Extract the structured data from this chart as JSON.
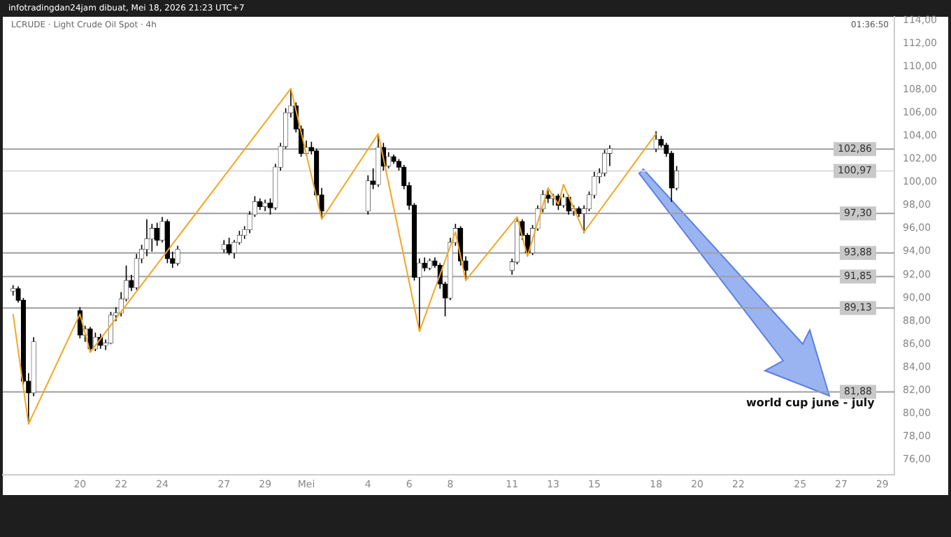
{
  "chart_data": {
    "type": "candlestick",
    "title": "LCRUDE · Light Crude Oil Spot · 4h",
    "x": [
      "2026-04-16T18:00",
      "2026-04-17T00:00",
      "2026-04-17T06:00",
      "2026-04-17T12:00",
      "2026-04-17T18:00",
      "2026-04-20T00:00",
      "2026-04-20T06:00",
      "2026-04-20T12:00",
      "2026-04-20T18:00",
      "2026-04-21T00:00",
      "2026-04-21T06:00",
      "2026-04-21T12:00",
      "2026-04-21T18:00",
      "2026-04-22T00:00",
      "2026-04-22T06:00",
      "2026-04-22T12:00",
      "2026-04-22T18:00",
      "2026-04-23T00:00",
      "2026-04-23T06:00",
      "2026-04-23T12:00",
      "2026-04-23T18:00",
      "2026-04-24T00:00",
      "2026-04-24T06:00",
      "2026-04-24T12:00",
      "2026-04-24T18:00",
      "2026-04-27T00:00",
      "2026-04-27T06:00",
      "2026-04-27T12:00",
      "2026-04-27T18:00",
      "2026-04-28T00:00",
      "2026-04-28T06:00",
      "2026-04-28T12:00",
      "2026-04-28T18:00",
      "2026-04-29T00:00",
      "2026-04-29T06:00",
      "2026-04-29T12:00",
      "2026-04-29T18:00",
      "2026-04-30T00:00",
      "2026-04-30T06:00",
      "2026-04-30T12:00",
      "2026-04-30T18:00",
      "2026-05-01T00:00",
      "2026-05-01T06:00",
      "2026-05-01T12:00",
      "2026-05-01T18:00",
      "2026-05-04T00:00",
      "2026-05-04T06:00",
      "2026-05-04T12:00",
      "2026-05-04T18:00",
      "2026-05-05T00:00",
      "2026-05-05T06:00",
      "2026-05-05T12:00",
      "2026-05-05T18:00",
      "2026-05-06T00:00",
      "2026-05-06T06:00",
      "2026-05-06T12:00",
      "2026-05-06T18:00",
      "2026-05-07T00:00",
      "2026-05-07T06:00",
      "2026-05-07T12:00",
      "2026-05-07T18:00",
      "2026-05-08T00:00",
      "2026-05-08T06:00",
      "2026-05-08T12:00",
      "2026-05-08T18:00",
      "2026-05-11T00:00",
      "2026-05-11T06:00",
      "2026-05-11T12:00",
      "2026-05-11T18:00",
      "2026-05-12T00:00",
      "2026-05-12T06:00",
      "2026-05-12T12:00",
      "2026-05-12T18:00",
      "2026-05-13T00:00",
      "2026-05-13T06:00",
      "2026-05-13T12:00",
      "2026-05-13T18:00",
      "2026-05-14T00:00",
      "2026-05-14T06:00",
      "2026-05-14T12:00",
      "2026-05-14T18:00",
      "2026-05-15T00:00",
      "2026-05-15T06:00",
      "2026-05-15T12:00",
      "2026-05-15T18:00",
      "2026-05-18T00:00",
      "2026-05-18T06:00",
      "2026-05-18T12:00",
      "2026-05-18T18:00",
      "2026-05-19T00:00"
    ],
    "ohlc": [
      [
        90.6,
        91.1,
        90.2,
        90.8
      ],
      [
        90.8,
        91.0,
        89.6,
        89.8
      ],
      [
        89.8,
        90.0,
        82.5,
        82.8
      ],
      [
        82.8,
        83.5,
        79.1,
        81.8
      ],
      [
        81.8,
        86.6,
        81.5,
        86.2
      ],
      [
        88.9,
        89.2,
        86.5,
        86.8
      ],
      [
        86.8,
        87.6,
        86.2,
        87.3
      ],
      [
        87.3,
        87.5,
        85.3,
        85.6
      ],
      [
        85.6,
        87.0,
        85.4,
        86.6
      ],
      [
        86.6,
        86.9,
        85.6,
        85.9
      ],
      [
        85.9,
        86.4,
        85.5,
        86.1
      ],
      [
        86.1,
        88.8,
        86.0,
        88.5
      ],
      [
        88.5,
        89.2,
        88.0,
        88.7
      ],
      [
        88.7,
        90.5,
        88.4,
        89.9
      ],
      [
        89.9,
        92.8,
        89.7,
        91.5
      ],
      [
        91.5,
        92.0,
        90.6,
        90.9
      ],
      [
        90.9,
        93.8,
        90.7,
        93.4
      ],
      [
        93.4,
        94.6,
        93.0,
        94.2
      ],
      [
        94.2,
        96.8,
        93.6,
        95.1
      ],
      [
        95.1,
        96.4,
        94.0,
        96.0
      ],
      [
        96.0,
        96.5,
        94.5,
        95.0
      ],
      [
        95.0,
        97.0,
        94.8,
        96.6
      ],
      [
        96.6,
        96.8,
        93.0,
        93.4
      ],
      [
        93.4,
        94.0,
        92.6,
        93.0
      ],
      [
        93.0,
        94.5,
        92.8,
        94.2
      ],
      [
        94.2,
        95.0,
        93.9,
        94.6
      ],
      [
        94.6,
        95.2,
        93.7,
        93.9
      ],
      [
        93.9,
        95.0,
        93.4,
        94.8
      ],
      [
        94.8,
        95.8,
        94.6,
        95.4
      ],
      [
        95.4,
        96.2,
        95.1,
        95.9
      ],
      [
        95.9,
        97.5,
        95.6,
        97.2
      ],
      [
        97.2,
        98.8,
        97.0,
        98.3
      ],
      [
        98.3,
        98.6,
        97.6,
        97.9
      ],
      [
        97.9,
        98.5,
        97.5,
        98.2
      ],
      [
        98.2,
        98.6,
        97.2,
        97.8
      ],
      [
        97.8,
        101.6,
        97.6,
        101.3
      ],
      [
        101.3,
        103.4,
        101.0,
        103.1
      ],
      [
        103.1,
        106.4,
        102.9,
        106.0
      ],
      [
        106.0,
        108.1,
        105.6,
        106.6
      ],
      [
        106.6,
        106.9,
        104.3,
        104.6
      ],
      [
        104.6,
        104.9,
        102.2,
        102.5
      ],
      [
        102.5,
        103.6,
        102.3,
        103.0
      ],
      [
        103.0,
        103.5,
        102.4,
        102.7
      ],
      [
        102.7,
        102.9,
        98.6,
        98.9
      ],
      [
        98.9,
        99.5,
        96.8,
        97.5
      ],
      [
        97.5,
        100.6,
        97.2,
        100.1
      ],
      [
        100.1,
        101.2,
        99.4,
        99.8
      ],
      [
        99.8,
        104.2,
        99.6,
        103.0
      ],
      [
        103.0,
        103.4,
        101.0,
        101.4
      ],
      [
        101.4,
        102.6,
        101.2,
        102.2
      ],
      [
        102.2,
        102.4,
        101.6,
        101.8
      ],
      [
        101.8,
        102.0,
        101.0,
        101.3
      ],
      [
        101.3,
        101.5,
        99.4,
        99.7
      ],
      [
        99.7,
        100.0,
        97.6,
        98.0
      ],
      [
        98.0,
        98.2,
        91.5,
        91.8
      ],
      [
        91.8,
        93.4,
        87.1,
        93.0
      ],
      [
        93.0,
        93.5,
        92.3,
        92.6
      ],
      [
        92.6,
        93.4,
        92.4,
        93.2
      ],
      [
        93.2,
        93.5,
        92.6,
        92.8
      ],
      [
        92.8,
        93.0,
        90.8,
        91.2
      ],
      [
        91.2,
        91.4,
        88.4,
        90.0
      ],
      [
        90.0,
        95.2,
        89.8,
        94.8
      ],
      [
        94.8,
        96.4,
        94.5,
        96.0
      ],
      [
        96.0,
        96.2,
        92.8,
        93.2
      ],
      [
        93.2,
        93.6,
        91.6,
        92.4
      ],
      [
        92.4,
        93.4,
        92.0,
        93.1
      ],
      [
        93.1,
        96.9,
        92.9,
        96.6
      ],
      [
        96.6,
        96.8,
        95.0,
        95.4
      ],
      [
        95.4,
        95.6,
        93.6,
        93.9
      ],
      [
        93.9,
        96.3,
        93.7,
        96.0
      ],
      [
        96.0,
        98.0,
        95.8,
        97.7
      ],
      [
        97.7,
        99.3,
        97.4,
        98.9
      ],
      [
        98.9,
        99.3,
        98.2,
        98.6
      ],
      [
        98.6,
        99.0,
        98.0,
        98.8
      ],
      [
        98.8,
        99.0,
        97.6,
        98.0
      ],
      [
        98.0,
        99.0,
        97.8,
        98.7
      ],
      [
        98.7,
        98.9,
        97.2,
        97.5
      ],
      [
        97.5,
        98.0,
        97.1,
        97.7
      ],
      [
        97.7,
        97.9,
        97.0,
        97.3
      ],
      [
        97.3,
        98.0,
        95.6,
        97.7
      ],
      [
        97.7,
        99.2,
        97.5,
        98.9
      ],
      [
        98.9,
        100.9,
        98.6,
        100.5
      ],
      [
        100.5,
        101.2,
        99.9,
        100.8
      ],
      [
        100.8,
        102.8,
        100.5,
        102.5
      ],
      [
        102.5,
        103.2,
        101.4,
        102.9
      ],
      [
        102.9,
        104.4,
        102.6,
        103.7
      ],
      [
        103.7,
        104.0,
        103.0,
        103.2
      ],
      [
        103.2,
        103.4,
        102.2,
        102.5
      ],
      [
        102.5,
        102.7,
        98.3,
        99.5
      ],
      [
        99.5,
        101.4,
        99.3,
        100.97
      ]
    ],
    "series": [
      {
        "type": "line",
        "color": "#f5a623",
        "x": [
          "2026-04-16T18:00",
          "2026-04-17T12:00",
          "2026-04-20T00:00",
          "2026-04-20T12:00",
          "2026-04-30T06:00",
          "2026-05-01T18:00",
          "2026-05-04T12:00",
          "2026-05-06T12:00",
          "2026-05-08T06:00",
          "2026-05-08T18:00",
          "2026-05-11T06:00",
          "2026-05-11T18:00",
          "2026-05-12T18:00",
          "2026-05-13T06:00",
          "2026-05-13T12:00",
          "2026-05-14T12:00",
          "2026-05-18T00:00"
        ],
        "values": [
          88.6,
          79.1,
          88.6,
          85.3,
          108.1,
          96.8,
          104.2,
          87.1,
          95.7,
          91.5,
          97.0,
          93.6,
          99.5,
          98.1,
          99.8,
          95.7,
          104.2
        ]
      }
    ],
    "xlim": [
      "2026-04-16T06:00",
      "2026-05-29T14:00"
    ],
    "xticks": [
      {
        "value": "2026-04-20",
        "label": "20"
      },
      {
        "value": "2026-04-22",
        "label": "22"
      },
      {
        "value": "2026-04-24",
        "label": "24"
      },
      {
        "value": "2026-04-27",
        "label": "27"
      },
      {
        "value": "2026-04-29",
        "label": "29"
      },
      {
        "value": "2026-05-01",
        "label": "Mei"
      },
      {
        "value": "2026-05-04",
        "label": "4"
      },
      {
        "value": "2026-05-06",
        "label": "6"
      },
      {
        "value": "2026-05-08",
        "label": "8"
      },
      {
        "value": "2026-05-11",
        "label": "11"
      },
      {
        "value": "2026-05-13",
        "label": "13"
      },
      {
        "value": "2026-05-15",
        "label": "15"
      },
      {
        "value": "2026-05-18",
        "label": "18"
      },
      {
        "value": "2026-05-20",
        "label": "20"
      },
      {
        "value": "2026-05-22",
        "label": "22"
      },
      {
        "value": "2026-05-25",
        "label": "25"
      },
      {
        "value": "2026-05-27",
        "label": "27"
      },
      {
        "value": "2026-05-29",
        "label": "29"
      }
    ],
    "ylim": [
      74.7,
      114.3
    ],
    "yticks": [
      {
        "value": 76,
        "label": "76,00"
      },
      {
        "value": 78,
        "label": "78,00"
      },
      {
        "value": 80,
        "label": "80,00"
      },
      {
        "value": 82,
        "label": "82,00"
      },
      {
        "value": 84,
        "label": "84,00"
      },
      {
        "value": 86,
        "label": "86,00"
      },
      {
        "value": 88,
        "label": "88,00"
      },
      {
        "value": 90,
        "label": "90,00"
      },
      {
        "value": 92,
        "label": "92,00"
      },
      {
        "value": 94,
        "label": "94,00"
      },
      {
        "value": 96,
        "label": "96,00"
      },
      {
        "value": 98,
        "label": "98,00"
      },
      {
        "value": 100,
        "label": "100,00"
      },
      {
        "value": 102,
        "label": "102,00"
      },
      {
        "value": 104,
        "label": "104,00"
      },
      {
        "value": 106,
        "label": "106,00"
      },
      {
        "value": 108,
        "label": "108,00"
      },
      {
        "value": 110,
        "label": "110,00"
      },
      {
        "value": 112,
        "label": "112,00"
      },
      {
        "value": 114,
        "label": "114,00"
      }
    ],
    "marker": "none",
    "ref_lines": [
      {
        "axis": "y",
        "value": 102.86,
        "label": "102,86",
        "color": "#9e9e9e"
      },
      {
        "axis": "y",
        "value": 100.97,
        "label": "100,97",
        "color": "#dddddd"
      },
      {
        "axis": "y",
        "value": 97.3,
        "label": "97,30",
        "color": "#9e9e9e"
      },
      {
        "axis": "y",
        "value": 93.88,
        "label": "93,88",
        "color": "#9e9e9e"
      },
      {
        "axis": "y",
        "value": 91.85,
        "label": "91,85",
        "color": "#9e9e9e"
      },
      {
        "axis": "y",
        "value": 89.13,
        "label": "89,13",
        "color": "#9e9e9e"
      },
      {
        "axis": "y",
        "value": 81.88,
        "label": "81,88",
        "color": "#9e9e9e"
      }
    ],
    "annotations": [
      "infotradingdan24jam dibuat, Mei 18, 2026 21:23 UTC+7",
      "01:36:50",
      {
        "text": "world cup june - july",
        "x": "2026-05-25T12:00",
        "y": 81.88
      }
    ]
  }
}
